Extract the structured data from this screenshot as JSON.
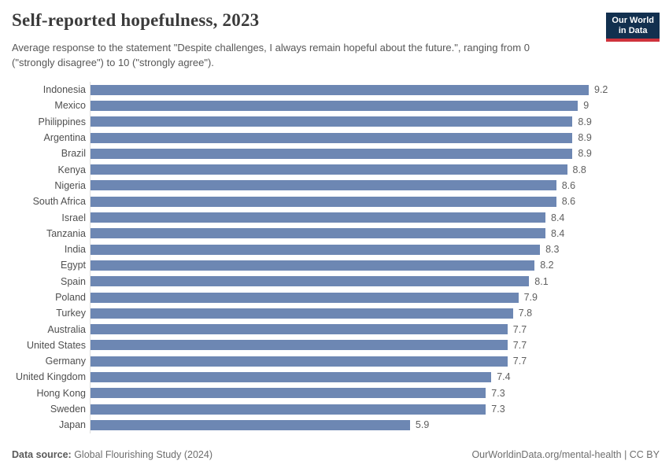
{
  "header": {
    "title": "Self-reported hopefulness, 2023",
    "subtitle": "Average response to the statement \"Despite challenges, I always remain hopeful about the future.\", ranging from 0 (\"strongly disagree\") to 10 (\"strongly agree\").",
    "logo": {
      "line1": "Our World",
      "line2": "in Data",
      "bg_color": "#12304f",
      "accent_color": "#cf323c"
    }
  },
  "chart_data": {
    "type": "bar",
    "orientation": "horizontal",
    "title": "Self-reported hopefulness, 2023",
    "xlabel": "",
    "ylabel": "",
    "xlim": [
      0,
      9.2
    ],
    "grid": false,
    "legend": false,
    "bar_color": "#6d87b3",
    "categories": [
      "Indonesia",
      "Mexico",
      "Philippines",
      "Argentina",
      "Brazil",
      "Kenya",
      "Nigeria",
      "South Africa",
      "Israel",
      "Tanzania",
      "India",
      "Egypt",
      "Spain",
      "Poland",
      "Turkey",
      "Australia",
      "United States",
      "Germany",
      "United Kingdom",
      "Hong Kong",
      "Sweden",
      "Japan"
    ],
    "values": [
      9.2,
      9,
      8.9,
      8.9,
      8.9,
      8.8,
      8.6,
      8.6,
      8.4,
      8.4,
      8.3,
      8.2,
      8.1,
      7.9,
      7.8,
      7.7,
      7.7,
      7.7,
      7.4,
      7.3,
      7.3,
      5.9
    ],
    "value_labels": [
      "9.2",
      "9",
      "8.9",
      "8.9",
      "8.9",
      "8.8",
      "8.6",
      "8.6",
      "8.4",
      "8.4",
      "8.3",
      "8.2",
      "8.1",
      "7.9",
      "7.8",
      "7.7",
      "7.7",
      "7.7",
      "7.4",
      "7.3",
      "7.3",
      "5.9"
    ]
  },
  "footer": {
    "source_label": "Data source:",
    "source_text": " Global Flourishing Study (2024)",
    "credit": "OurWorldinData.org/mental-health | CC BY"
  }
}
